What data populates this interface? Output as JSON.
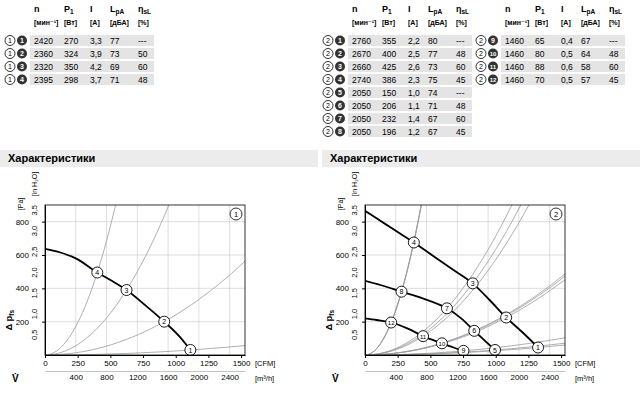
{
  "tables": [
    {
      "chart": "1",
      "columns": [
        {
          "name": "n",
          "unit": "[мин⁻¹]"
        },
        {
          "name": "P",
          "sub": "1",
          "unit": "[Вт]"
        },
        {
          "name": "I",
          "unit": "[А]"
        },
        {
          "name": "L",
          "sub": "pA",
          "unit": "[дБА]"
        },
        {
          "name": "η",
          "sub": "sL",
          "unit": "[%]"
        }
      ],
      "groups": [
        {
          "rows": [
            {
              "point": "1",
              "cells": [
                "2420",
                "270",
                "3,3",
                "77",
                "---"
              ]
            },
            {
              "point": "2",
              "cells": [
                "2360",
                "324",
                "3,9",
                "73",
                "50"
              ]
            },
            {
              "point": "3",
              "cells": [
                "2320",
                "350",
                "4,2",
                "69",
                "60"
              ]
            },
            {
              "point": "4",
              "cells": [
                "2395",
                "298",
                "3,7",
                "71",
                "48"
              ]
            }
          ]
        }
      ]
    },
    {
      "chart": "2",
      "columns": [
        {
          "name": "n",
          "unit": "[мин⁻¹]"
        },
        {
          "name": "P",
          "sub": "1",
          "unit": "[Вт]"
        },
        {
          "name": "I",
          "unit": "[А]"
        },
        {
          "name": "L",
          "sub": "pA",
          "unit": "[дБА]"
        },
        {
          "name": "η",
          "sub": "sL",
          "unit": "[%]"
        }
      ],
      "groups": [
        {
          "rows": [
            {
              "point": "1",
              "cells": [
                "2760",
                "355",
                "2,2",
                "80",
                "---"
              ]
            },
            {
              "point": "2",
              "cells": [
                "2670",
                "400",
                "2,5",
                "77",
                "48"
              ]
            },
            {
              "point": "3",
              "cells": [
                "2660",
                "425",
                "2,6",
                "73",
                "60"
              ]
            },
            {
              "point": "4",
              "cells": [
                "2740",
                "386",
                "2,3",
                "75",
                "45"
              ]
            },
            {
              "point": "5",
              "cells": [
                "2050",
                "150",
                "1,0",
                "74",
                "---"
              ]
            },
            {
              "point": "6",
              "cells": [
                "2050",
                "206",
                "1,1",
                "71",
                "48"
              ]
            },
            {
              "point": "7",
              "cells": [
                "2050",
                "232",
                "1,4",
                "67",
                "60"
              ]
            },
            {
              "point": "8",
              "cells": [
                "2050",
                "196",
                "1,2",
                "67",
                "45"
              ]
            }
          ]
        },
        {
          "rows": [
            {
              "point": "9",
              "cells": [
                "1460",
                "65",
                "0,4",
                "67",
                "---"
              ]
            },
            {
              "point": "10",
              "cells": [
                "1460",
                "80",
                "0,5",
                "64",
                "48"
              ]
            },
            {
              "point": "11",
              "cells": [
                "1460",
                "88",
                "0,6",
                "58",
                "60"
              ]
            },
            {
              "point": "12",
              "cells": [
                "1460",
                "70",
                "0,5",
                "57",
                "45"
              ]
            }
          ]
        }
      ]
    }
  ],
  "section_titles": [
    "Характеристики",
    "Характеристики"
  ],
  "chart_data": [
    {
      "type": "line",
      "title": "1",
      "xlabel": "V̇",
      "xunit": "[m³/h]",
      "x2unit": "[CFM]",
      "ylabel": "Δ p",
      "ylabel_sub": "fs",
      "yunit": "[Pa]",
      "y2unit": "[in H₂O]",
      "xlim": [
        0,
        2600
      ],
      "xticks": [
        400,
        800,
        1200,
        1600,
        2000,
        2400
      ],
      "x2lim": [
        0,
        1530
      ],
      "x2ticks": [
        0,
        250,
        500,
        750,
        1000,
        1250,
        1500
      ],
      "ylim": [
        0,
        900
      ],
      "yticks": [
        200,
        400,
        600,
        800
      ],
      "y2lim": [
        0,
        3.613
      ],
      "y2ticks": [
        {
          "value": 0.5,
          "label": "0,5"
        },
        {
          "value": 1,
          "label": "1,0"
        },
        {
          "value": 1.5,
          "label": "1,5"
        },
        {
          "value": 2,
          "label": "2,0"
        },
        {
          "value": 2.5,
          "label": "2,5"
        },
        {
          "value": 3,
          "label": "3,0"
        },
        {
          "value": 3.5,
          "label": "3,5"
        }
      ],
      "grid": true,
      "series": [
        {
          "type": "line",
          "color": "#000000",
          "x": [
            0,
            200,
            400,
            680,
            850,
            1060,
            1300,
            1550,
            1750,
            1890
          ],
          "values": [
            637,
            615,
            580,
            495,
            450,
            390,
            300,
            200,
            110,
            30
          ]
        },
        {
          "type": "scatter",
          "marker": "circle",
          "color": "#000000",
          "x": [
            680,
            1060,
            1550,
            1890
          ],
          "values": [
            495,
            390,
            200,
            30
          ],
          "point_labels": [
            "4",
            "3",
            "2",
            "1"
          ]
        }
      ]
    },
    {
      "type": "line",
      "title": "2",
      "xlabel": "V̇",
      "xunit": "[m³/h]",
      "x2unit": "[CFM]",
      "ylabel": "Δ p",
      "ylabel_sub": "fs",
      "yunit": "[Pa]",
      "y2unit": "[in H₂O]",
      "xlim": [
        0,
        2600
      ],
      "xticks": [
        400,
        800,
        1200,
        1600,
        2000,
        2400
      ],
      "x2lim": [
        0,
        1530
      ],
      "x2ticks": [
        0,
        250,
        500,
        750,
        1000,
        1250,
        1500
      ],
      "ylim": [
        0,
        900
      ],
      "yticks": [
        200,
        400,
        600,
        800
      ],
      "y2lim": [
        0,
        3.613
      ],
      "y2ticks": [
        {
          "value": 0.5,
          "label": "0,5"
        },
        {
          "value": 1,
          "label": "1,0"
        },
        {
          "value": 1.5,
          "label": "1,5"
        },
        {
          "value": 2,
          "label": "2,0"
        },
        {
          "value": 2.5,
          "label": "2,5"
        },
        {
          "value": 3,
          "label": "3,0"
        },
        {
          "value": 3.5,
          "label": "3,5"
        }
      ],
      "grid": true,
      "series": [
        {
          "type": "line",
          "color": "#000000",
          "x": [
            0,
            150,
            300,
            450,
            635,
            900,
            1150,
            1400,
            1620,
            1835,
            2050,
            2250
          ],
          "values": [
            865,
            820,
            775,
            730,
            675,
            590,
            510,
            430,
            330,
            225,
            135,
            45
          ]
        },
        {
          "type": "line",
          "color": "#000000",
          "x": [
            0,
            200,
            475,
            750,
            1065,
            1250,
            1420,
            1560,
            1690
          ],
          "values": [
            445,
            420,
            380,
            340,
            280,
            220,
            145,
            85,
            30
          ]
        },
        {
          "type": "line",
          "color": "#000000",
          "x": [
            0,
            150,
            340,
            550,
            755,
            1000,
            1150,
            1280
          ],
          "values": [
            220,
            210,
            195,
            160,
            113,
            70,
            45,
            25
          ]
        },
        {
          "type": "scatter",
          "marker": "circle",
          "color": "#000000",
          "x": [
            635,
            1400,
            1835,
            2250
          ],
          "values": [
            675,
            430,
            225,
            45
          ],
          "point_labels": [
            "4",
            "3",
            "2",
            "1"
          ]
        },
        {
          "type": "scatter",
          "marker": "circle",
          "color": "#000000",
          "x": [
            475,
            1065,
            1420,
            1690
          ],
          "values": [
            380,
            280,
            145,
            30
          ],
          "point_labels": [
            "8",
            "7",
            "6",
            "5"
          ]
        },
        {
          "type": "scatter",
          "marker": "circle",
          "color": "#000000",
          "x": [
            340,
            755,
            1000,
            1280
          ],
          "values": [
            195,
            113,
            70,
            25
          ],
          "point_labels": [
            "12",
            "11",
            "10",
            "9"
          ]
        }
      ]
    }
  ]
}
